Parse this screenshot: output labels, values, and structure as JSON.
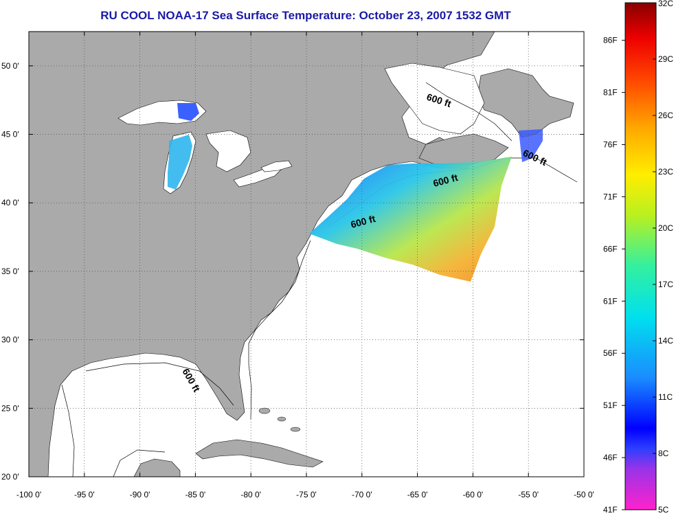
{
  "title": "RU COOL  NOAA-17  Sea Surface Temperature:  October 23, 2007 1532 GMT",
  "map": {
    "lon_range": [
      -100,
      -50
    ],
    "lat_range": [
      20,
      52.5
    ],
    "lon_ticks": [
      {
        "value": -100,
        "label": "-100 0'"
      },
      {
        "value": -95,
        "label": "-95 0'"
      },
      {
        "value": -90,
        "label": "-90 0'"
      },
      {
        "value": -85,
        "label": "-85 0'"
      },
      {
        "value": -80,
        "label": "-80 0'"
      },
      {
        "value": -75,
        "label": "-75 0'"
      },
      {
        "value": -70,
        "label": "-70 0'"
      },
      {
        "value": -65,
        "label": "-65 0'"
      },
      {
        "value": -60,
        "label": "-60 0'"
      },
      {
        "value": -55,
        "label": "-55 0'"
      },
      {
        "value": -50,
        "label": "-50 0'"
      }
    ],
    "lat_ticks": [
      {
        "value": 20,
        "label": "20 0'"
      },
      {
        "value": 25,
        "label": "25 0'"
      },
      {
        "value": 30,
        "label": "30 0'"
      },
      {
        "value": 35,
        "label": "35 0'"
      },
      {
        "value": 40,
        "label": "40 0'"
      },
      {
        "value": 45,
        "label": "45 0'"
      },
      {
        "value": 50,
        "label": "50 0'"
      }
    ],
    "grid": "dotted",
    "land_color": "#aaaaaa",
    "water_color": "#ffffff",
    "contour_label": "600 ft"
  },
  "colorbar": {
    "temp_range_c": [
      5,
      32
    ],
    "celsius_labels": [
      {
        "value": 32,
        "label": "32C"
      },
      {
        "value": 29,
        "label": "29C"
      },
      {
        "value": 26,
        "label": "26C"
      },
      {
        "value": 23,
        "label": "23C"
      },
      {
        "value": 20,
        "label": "20C"
      },
      {
        "value": 17,
        "label": "17C"
      },
      {
        "value": 14,
        "label": "14C"
      },
      {
        "value": 11,
        "label": "11C"
      },
      {
        "value": 8,
        "label": "8C"
      },
      {
        "value": 5,
        "label": "5C"
      }
    ],
    "fahrenheit_labels": [
      {
        "value": 86,
        "label": "86F"
      },
      {
        "value": 81,
        "label": "81F"
      },
      {
        "value": 76,
        "label": "76F"
      },
      {
        "value": 71,
        "label": "71F"
      },
      {
        "value": 66,
        "label": "66F"
      },
      {
        "value": 61,
        "label": "61F"
      },
      {
        "value": 56,
        "label": "56F"
      },
      {
        "value": 51,
        "label": "51F"
      },
      {
        "value": 46,
        "label": "46F"
      },
      {
        "value": 41,
        "label": "41F"
      }
    ]
  }
}
